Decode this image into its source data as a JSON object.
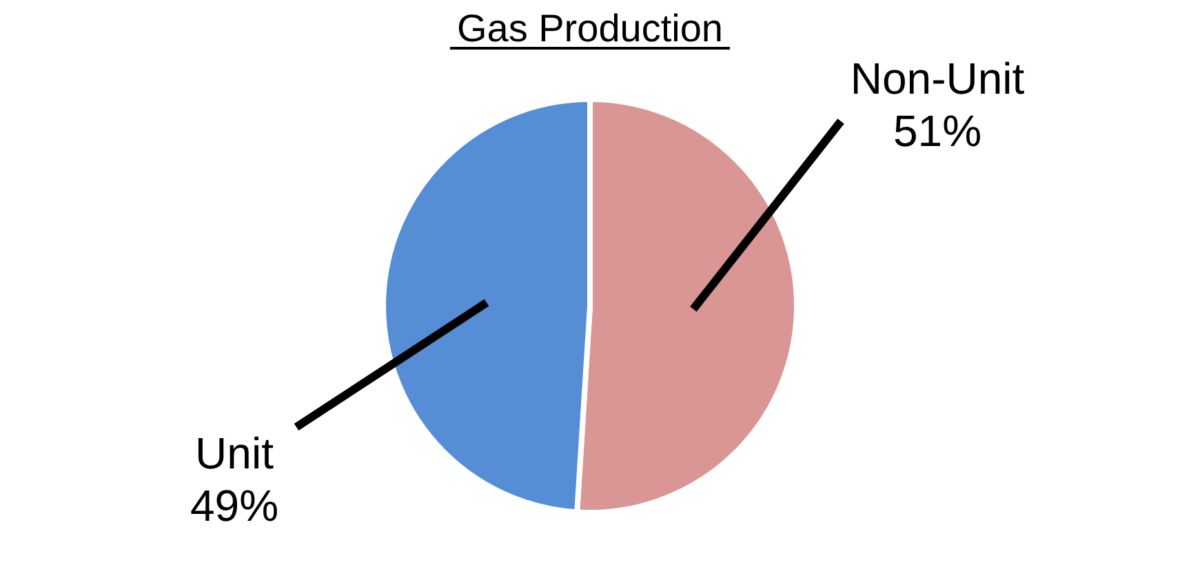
{
  "chart_data": {
    "type": "pie",
    "title": "Gas Production",
    "categories": [
      "Non-Unit",
      "Unit"
    ],
    "values": [
      51,
      49
    ],
    "colors": [
      "#d99694",
      "#558ed5"
    ],
    "value_labels": [
      "51%",
      "49%"
    ]
  }
}
